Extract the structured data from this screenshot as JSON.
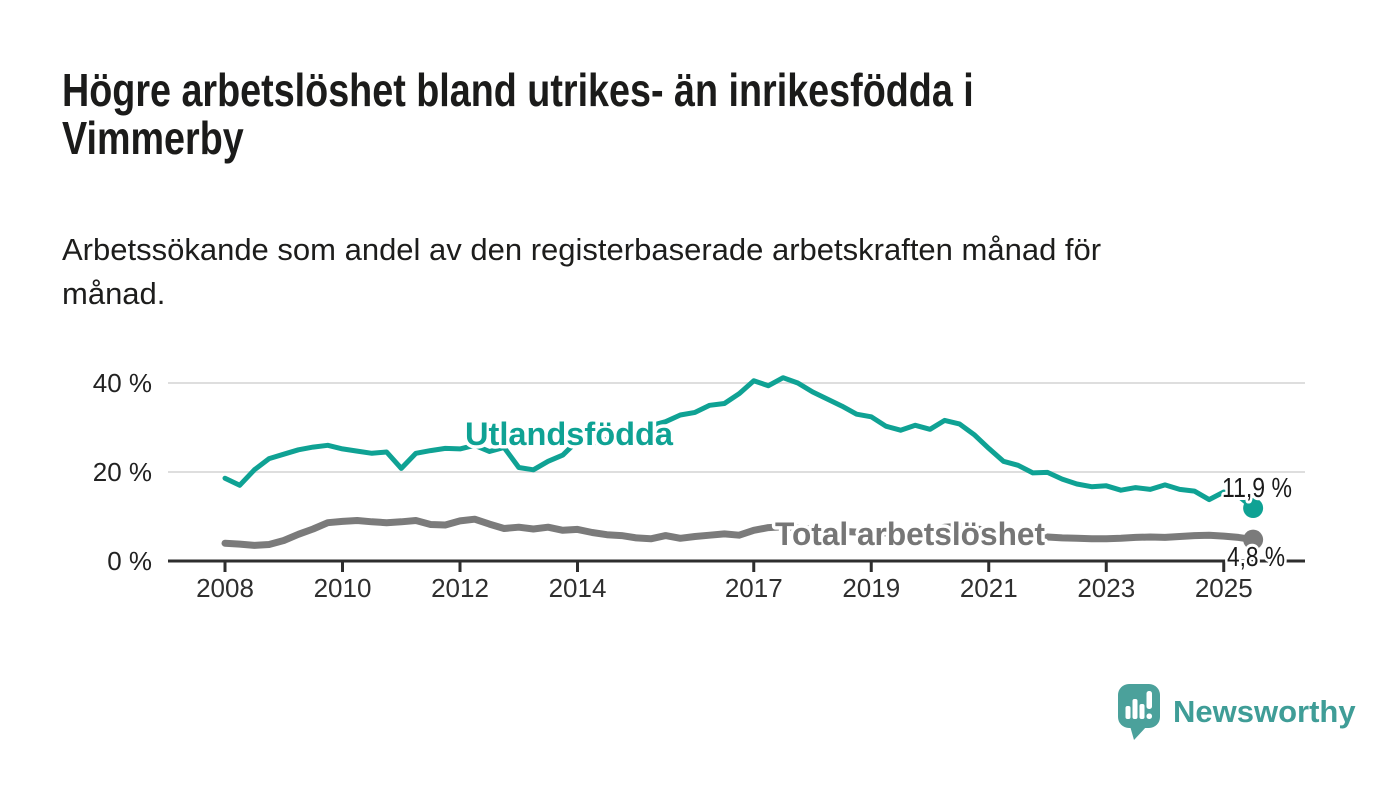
{
  "header": {
    "title_line1": "Högre arbetslöshet bland utrikes- än inrikesfödda i",
    "title_line2": "Vimmerby",
    "subtitle_line1": "Arbetssökande som andel av den registerbaserade arbetskraften månad för",
    "subtitle_line2": "månad."
  },
  "branding": {
    "logo_text": "Newsworthy",
    "logo_bubble_color": "#4BA19B",
    "logo_text_color": "#3F9D97"
  },
  "chart_data": {
    "type": "line",
    "x_unit": "year",
    "x_start": 2008.0,
    "x_step": 0.25,
    "x_ticks": [
      2008,
      2010,
      2012,
      2014,
      2017,
      2019,
      2021,
      2023,
      2025
    ],
    "y_ticks": [
      {
        "value": 0,
        "label": "0 %"
      },
      {
        "value": 20,
        "label": "20 %"
      },
      {
        "value": 40,
        "label": "40 %"
      }
    ],
    "ylim": [
      0,
      44
    ],
    "grid": "horizontal",
    "axis_color": "#2E2E2E",
    "grid_color": "#DEDEDE",
    "series": [
      {
        "name": "Utlandsfödda",
        "color": "#0FA294",
        "end_label": "11,9 %",
        "end_value": 11.9,
        "values": [
          18.6,
          17.0,
          20.5,
          23.0,
          24.0,
          25.0,
          25.6,
          26.0,
          25.2,
          24.7,
          24.2,
          24.5,
          20.8,
          24.2,
          24.8,
          25.3,
          25.2,
          26.0,
          24.6,
          25.5,
          21.0,
          20.5,
          22.4,
          23.8,
          27.0,
          26.4,
          27.4,
          28.4,
          29.4,
          30.4,
          31.3,
          32.8,
          33.4,
          35.0,
          35.4,
          37.6,
          40.5,
          39.4,
          41.2,
          40.0,
          38.0,
          36.4,
          34.8,
          33.0,
          32.4,
          30.3,
          29.4,
          30.5,
          29.6,
          31.6,
          30.8,
          28.4,
          25.3,
          22.4,
          21.5,
          19.8,
          19.9,
          18.4,
          17.3,
          16.7,
          16.9,
          15.9,
          16.5,
          16.1,
          17.1,
          16.1,
          15.7,
          13.8,
          15.5,
          14.6,
          11.9
        ]
      },
      {
        "name": "Total arbetslöshet",
        "color": "#7B7B7B",
        "end_label": "4,8 %",
        "end_value": 4.8,
        "values": [
          4.0,
          3.8,
          3.5,
          3.7,
          4.6,
          6.0,
          7.2,
          8.6,
          8.9,
          9.1,
          8.8,
          8.6,
          8.8,
          9.1,
          8.2,
          8.1,
          9.0,
          9.4,
          8.3,
          7.3,
          7.6,
          7.2,
          7.6,
          6.9,
          7.1,
          6.4,
          5.9,
          5.7,
          5.2,
          5.0,
          5.7,
          5.1,
          5.5,
          5.8,
          6.1,
          5.8,
          6.9,
          7.5,
          7.7,
          7.4,
          7.1,
          6.9,
          6.7,
          6.5,
          6.4,
          6.3,
          6.2,
          6.3,
          6.6,
          7.6,
          7.8,
          7.3,
          6.8,
          6.3,
          5.9,
          5.6,
          5.4,
          5.2,
          5.1,
          5.0,
          5.0,
          5.1,
          5.3,
          5.4,
          5.3,
          5.5,
          5.7,
          5.8,
          5.6,
          5.3,
          4.8
        ]
      }
    ]
  }
}
